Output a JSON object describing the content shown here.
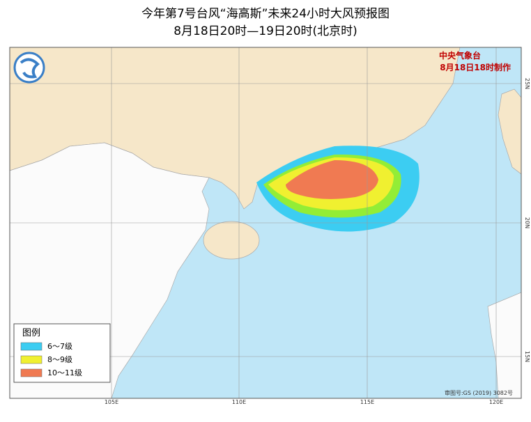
{
  "title": "今年第7号台风“海高斯”未来24小时大风预报图",
  "subtitle": "8月18日20时—19日20时(北京时)",
  "agency": "中央气象台",
  "issued": "8月18日18时制作",
  "legend": {
    "title": "图例",
    "items": [
      "6～7级",
      "8～9级",
      "10～11级"
    ]
  },
  "longitude_labels": [
    "105E",
    "110E",
    "115E",
    "120E"
  ],
  "latitude_labels": [
    "25N",
    "20N",
    "15N"
  ],
  "footer": "审图号:GS (2019) 3082号"
}
